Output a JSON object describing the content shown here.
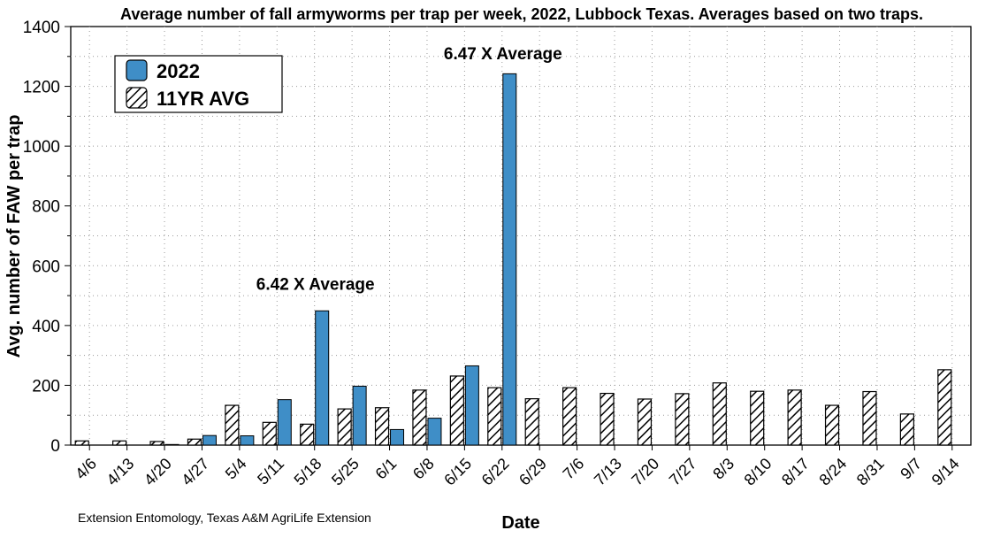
{
  "chart_data": {
    "type": "bar",
    "title": "Average number of fall armyworms per trap per week, 2022, Lubbock Texas. Averages based on two traps.",
    "xlabel": "Date",
    "ylabel": "Avg. number of FAW per trap",
    "ylim": [
      0,
      1400
    ],
    "yticks": [
      0,
      200,
      400,
      600,
      800,
      1000,
      1200,
      1400
    ],
    "grid": true,
    "legend_position": "top-left",
    "categories": [
      "4/6",
      "4/13",
      "4/20",
      "4/27",
      "5/4",
      "5/11",
      "5/18",
      "5/25",
      "6/1",
      "6/8",
      "6/15",
      "6/22",
      "6/29",
      "7/6",
      "7/13",
      "7/20",
      "7/27",
      "8/3",
      "8/10",
      "8/17",
      "8/24",
      "8/31",
      "9/7",
      "9/14"
    ],
    "series": [
      {
        "name": "11YR AVG",
        "style": "hatched",
        "values": [
          14,
          14,
          12,
          20,
          133,
          76,
          70,
          121,
          125,
          184,
          231,
          192,
          155,
          192,
          173,
          154,
          172,
          208,
          180,
          184,
          133,
          179,
          104,
          252
        ]
      },
      {
        "name": "2022",
        "style": "solid",
        "color": "#3f8ec7",
        "values": [
          null,
          null,
          2,
          32,
          31,
          152,
          449,
          197,
          52,
          90,
          265,
          1242,
          null,
          null,
          null,
          null,
          null,
          null,
          null,
          null,
          null,
          null,
          null,
          null
        ]
      }
    ],
    "annotations": [
      {
        "text": "6.42 X Average",
        "category": "5/18",
        "value": 520
      },
      {
        "text": "6.47 X Average",
        "category": "6/22",
        "value": 1290
      }
    ],
    "credit": "Extension Entomology, Texas A&M AgriLife Extension"
  }
}
